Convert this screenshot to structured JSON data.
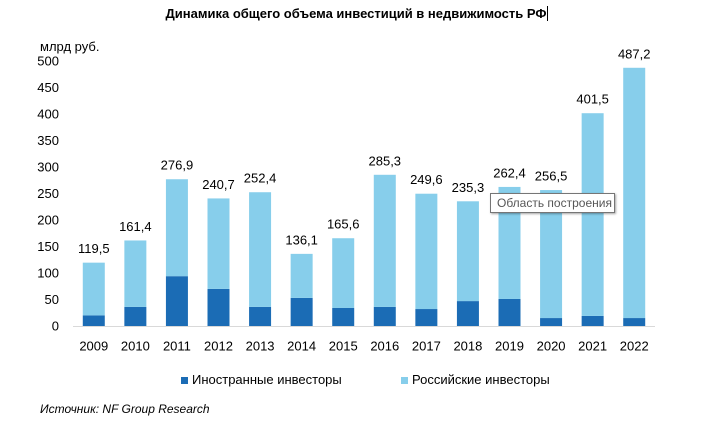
{
  "tooltip": {
    "text": "Область построения"
  },
  "source": "Источник: NF Group Research",
  "colors": {
    "axis": "#d9d9d9",
    "text": "#000000",
    "tooltip_border": "#767676"
  },
  "chart_data": {
    "type": "bar",
    "stacked": true,
    "title": "Динамика общего объема инвестиций в недвижимость РФ",
    "ylabel": "млрд руб.",
    "categories": [
      "2009",
      "2010",
      "2011",
      "2012",
      "2013",
      "2014",
      "2015",
      "2016",
      "2017",
      "2018",
      "2019",
      "2020",
      "2021",
      "2022"
    ],
    "ylim": [
      0,
      500
    ],
    "yticks": [
      0,
      50,
      100,
      150,
      200,
      250,
      300,
      350,
      400,
      450,
      500
    ],
    "grid": false,
    "legend": "bottom",
    "series": [
      {
        "name": "Иностранные инвесторы",
        "color": "#1b6cb5",
        "values": [
          20,
          36,
          94,
          70,
          36,
          53,
          34,
          36,
          32,
          47,
          51,
          15,
          19,
          15
        ]
      },
      {
        "name": "Российские инвесторы",
        "color": "#87ceeb",
        "values": [
          99.5,
          125.4,
          182.9,
          170.7,
          216.4,
          83.1,
          131.6,
          249.3,
          217.6,
          188.3,
          211.4,
          241.5,
          382.5,
          472.2
        ]
      }
    ],
    "total_labels": [
      "119,5",
      "161,4",
      "276,9",
      "240,7",
      "252,4",
      "136,1",
      "165,6",
      "285,3",
      "249,6",
      "235,3",
      "262,4",
      "256,5",
      "401,5",
      "487,2"
    ]
  }
}
